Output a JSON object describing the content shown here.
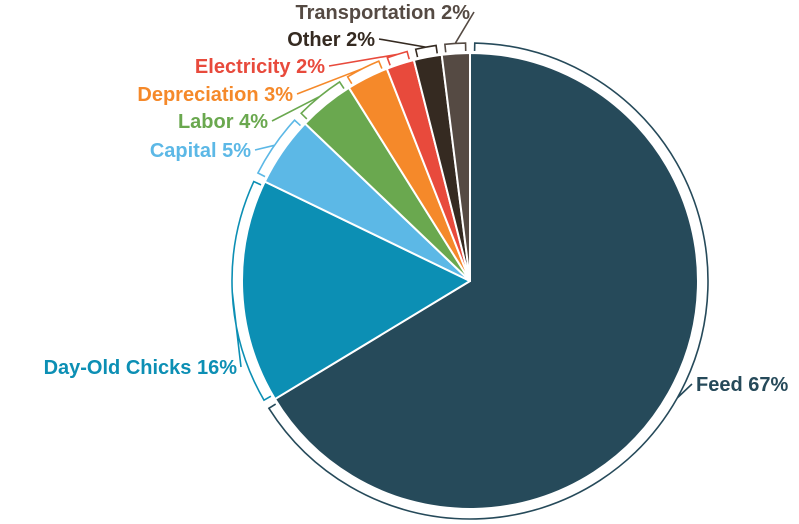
{
  "chart_data": {
    "type": "pie",
    "title": "",
    "start_angle_deg": 0,
    "direction": "clockwise",
    "slices": [
      {
        "label": "Feed 67%",
        "name": "Feed",
        "value": 67,
        "color": "#264a5a"
      },
      {
        "label": "Day-Old Chicks 16%",
        "name": "Day-Old Chicks",
        "value": 16,
        "color": "#0c8fb4"
      },
      {
        "label": "Capital 5%",
        "name": "Capital",
        "value": 5,
        "color": "#5cb8e6"
      },
      {
        "label": "Labor 4%",
        "name": "Labor",
        "value": 4,
        "color": "#6aa84f"
      },
      {
        "label": "Depreciation 3%",
        "name": "Depreciation",
        "value": 3,
        "color": "#f5892a"
      },
      {
        "label": "Electricity 2%",
        "name": "Electricity",
        "value": 2,
        "color": "#e84a3c"
      },
      {
        "label": "Other 2%",
        "name": "Other",
        "value": 2,
        "color": "#352a21"
      },
      {
        "label": "Transportation 2%",
        "name": "Transportation",
        "value": 2,
        "color": "#554a43"
      }
    ]
  }
}
